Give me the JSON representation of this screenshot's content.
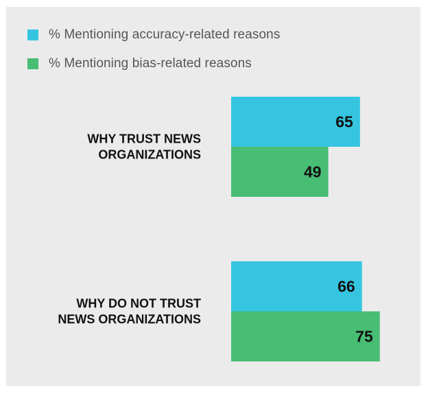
{
  "chart_data": {
    "type": "bar",
    "orientation": "horizontal",
    "categories": [
      [
        "WHY TRUST NEWS",
        "ORGANIZATIONS"
      ],
      [
        "WHY DO NOT TRUST",
        "NEWS ORGANIZATIONS"
      ]
    ],
    "series": [
      {
        "name": "% Mentioning accuracy-related reasons",
        "color": "#36c5e0",
        "values": [
          65,
          66
        ]
      },
      {
        "name": "% Mentioning bias-related reasons",
        "color": "#48bd74",
        "values": [
          49,
          75
        ]
      }
    ],
    "title": "",
    "xlabel": "",
    "ylabel": "",
    "grid": false,
    "legend_position": "top-left",
    "background": "#ebebeb"
  }
}
